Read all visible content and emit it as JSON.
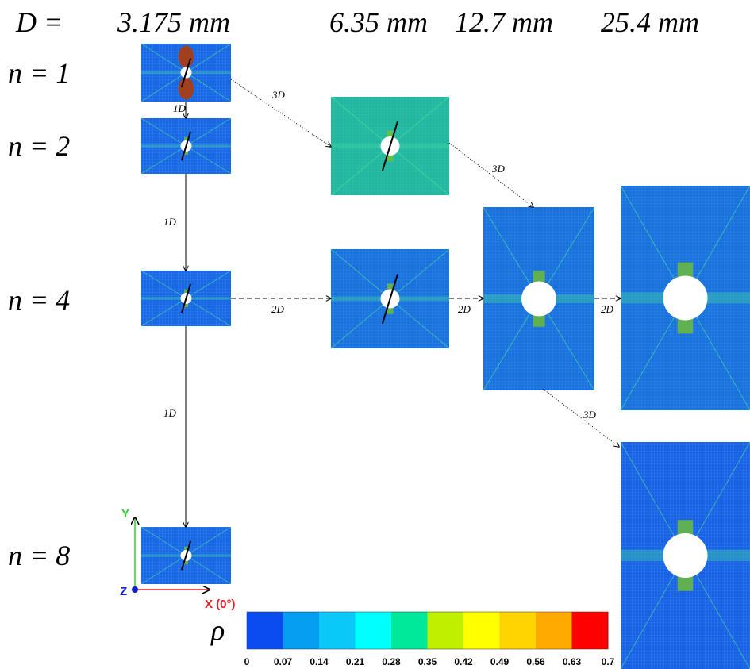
{
  "header": {
    "diameter_label": "D =",
    "diameters": [
      "3.175 mm",
      "6.35 mm",
      "12.7 mm",
      "25.4 mm"
    ]
  },
  "rows": [
    "n = 1",
    "n = 2",
    "n = 4",
    "n = 8"
  ],
  "edges": [
    "1D",
    "1D",
    "1D",
    "3D",
    "2D",
    "2D",
    "2D",
    "3D",
    "3D"
  ],
  "axes": {
    "y": "Y",
    "z": "Z",
    "x": "X (0°)"
  },
  "colorbar": {
    "symbol": "ρ",
    "colors": [
      "#0a4cf0",
      "#069ef0",
      "#0ac8f8",
      "#00ffff",
      "#00e89a",
      "#c0f000",
      "#ffff00",
      "#ffd400",
      "#ffaa00",
      "#ff0000"
    ],
    "ticks": [
      "0",
      "0.07",
      "0.14",
      "0.21",
      "0.28",
      "0.35",
      "0.42",
      "0.49",
      "0.56",
      "0.63",
      "0.7"
    ]
  }
}
